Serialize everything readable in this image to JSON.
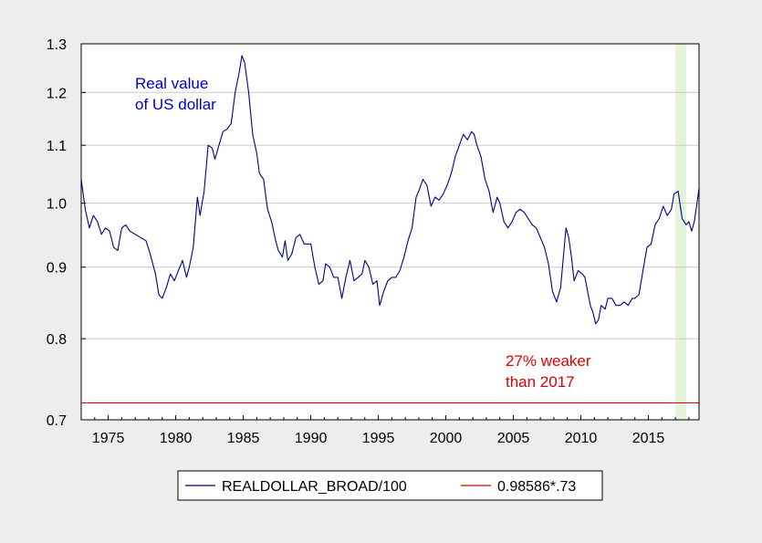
{
  "chart_data": {
    "type": "line",
    "title": "",
    "xlabel": "",
    "ylabel": "",
    "scale_y": "log",
    "xlim": [
      1973.0,
      2018.75
    ],
    "ylim": [
      0.7,
      1.3
    ],
    "grid": "horizontal",
    "y_ticks": [
      "0.7",
      "0.8",
      "0.9",
      "1.0",
      "1.1",
      "1.2",
      "1.3"
    ],
    "x_ticks": [
      "1975",
      "1980",
      "1985",
      "1990",
      "1995",
      "2000",
      "2005",
      "2010",
      "2015"
    ],
    "shaded_region": {
      "start": 2017.0,
      "end": 2017.8,
      "color": "#e4f4da"
    },
    "annotations": [
      {
        "id": "annot-real-value",
        "lines": [
          "Real value",
          "of US dollar"
        ],
        "color": "#0000cc"
      },
      {
        "id": "annot-weaker",
        "lines": [
          "27% weaker",
          "than 2017"
        ],
        "color": "#e00000"
      }
    ],
    "legend": {
      "placement": "bottom-center"
    },
    "series": [
      {
        "name": "REALDOLLAR_BROAD/100",
        "color": "#00008b",
        "points": [
          [
            1973.0,
            1.04
          ],
          [
            1973.3,
            0.99
          ],
          [
            1973.6,
            0.96
          ],
          [
            1973.9,
            0.98
          ],
          [
            1974.2,
            0.97
          ],
          [
            1974.5,
            0.95
          ],
          [
            1974.8,
            0.96
          ],
          [
            1975.1,
            0.955
          ],
          [
            1975.4,
            0.93
          ],
          [
            1975.7,
            0.925
          ],
          [
            1976.0,
            0.96
          ],
          [
            1976.3,
            0.965
          ],
          [
            1976.6,
            0.955
          ],
          [
            1977.0,
            0.95
          ],
          [
            1977.4,
            0.945
          ],
          [
            1977.8,
            0.94
          ],
          [
            1978.1,
            0.92
          ],
          [
            1978.5,
            0.89
          ],
          [
            1978.75,
            0.86
          ],
          [
            1979.0,
            0.855
          ],
          [
            1979.3,
            0.87
          ],
          [
            1979.6,
            0.89
          ],
          [
            1979.9,
            0.88
          ],
          [
            1980.2,
            0.895
          ],
          [
            1980.5,
            0.91
          ],
          [
            1980.8,
            0.885
          ],
          [
            1981.0,
            0.9
          ],
          [
            1981.3,
            0.93
          ],
          [
            1981.6,
            1.01
          ],
          [
            1981.8,
            0.98
          ],
          [
            1982.1,
            1.02
          ],
          [
            1982.4,
            1.1
          ],
          [
            1982.7,
            1.095
          ],
          [
            1982.9,
            1.075
          ],
          [
            1983.2,
            1.1
          ],
          [
            1983.5,
            1.125
          ],
          [
            1983.8,
            1.13
          ],
          [
            1984.1,
            1.14
          ],
          [
            1984.4,
            1.2
          ],
          [
            1984.7,
            1.24
          ],
          [
            1984.9,
            1.275
          ],
          [
            1985.1,
            1.26
          ],
          [
            1985.4,
            1.2
          ],
          [
            1985.7,
            1.12
          ],
          [
            1986.0,
            1.085
          ],
          [
            1986.2,
            1.05
          ],
          [
            1986.5,
            1.04
          ],
          [
            1986.8,
            0.99
          ],
          [
            1987.1,
            0.97
          ],
          [
            1987.4,
            0.94
          ],
          [
            1987.6,
            0.925
          ],
          [
            1987.9,
            0.915
          ],
          [
            1988.1,
            0.94
          ],
          [
            1988.3,
            0.91
          ],
          [
            1988.6,
            0.92
          ],
          [
            1988.9,
            0.945
          ],
          [
            1989.2,
            0.95
          ],
          [
            1989.5,
            0.935
          ],
          [
            1989.8,
            0.935
          ],
          [
            1990.0,
            0.935
          ],
          [
            1990.3,
            0.9
          ],
          [
            1990.6,
            0.875
          ],
          [
            1990.9,
            0.88
          ],
          [
            1991.1,
            0.905
          ],
          [
            1991.4,
            0.9
          ],
          [
            1991.7,
            0.885
          ],
          [
            1992.0,
            0.885
          ],
          [
            1992.3,
            0.855
          ],
          [
            1992.6,
            0.885
          ],
          [
            1992.9,
            0.91
          ],
          [
            1993.2,
            0.88
          ],
          [
            1993.5,
            0.885
          ],
          [
            1993.8,
            0.89
          ],
          [
            1994.0,
            0.91
          ],
          [
            1994.3,
            0.9
          ],
          [
            1994.6,
            0.875
          ],
          [
            1994.9,
            0.88
          ],
          [
            1995.1,
            0.845
          ],
          [
            1995.4,
            0.865
          ],
          [
            1995.7,
            0.88
          ],
          [
            1996.0,
            0.885
          ],
          [
            1996.3,
            0.885
          ],
          [
            1996.6,
            0.895
          ],
          [
            1996.9,
            0.915
          ],
          [
            1997.2,
            0.94
          ],
          [
            1997.5,
            0.96
          ],
          [
            1997.8,
            1.01
          ],
          [
            1998.0,
            1.02
          ],
          [
            1998.3,
            1.04
          ],
          [
            1998.6,
            1.03
          ],
          [
            1998.9,
            0.995
          ],
          [
            1999.2,
            1.01
          ],
          [
            1999.5,
            1.005
          ],
          [
            1999.8,
            1.015
          ],
          [
            2000.1,
            1.03
          ],
          [
            2000.4,
            1.05
          ],
          [
            2000.7,
            1.08
          ],
          [
            2001.0,
            1.1
          ],
          [
            2001.3,
            1.12
          ],
          [
            2001.6,
            1.11
          ],
          [
            2001.9,
            1.125
          ],
          [
            2002.1,
            1.12
          ],
          [
            2002.3,
            1.1
          ],
          [
            2002.6,
            1.08
          ],
          [
            2002.9,
            1.04
          ],
          [
            2003.2,
            1.02
          ],
          [
            2003.5,
            0.985
          ],
          [
            2003.8,
            1.01
          ],
          [
            2004.0,
            1.0
          ],
          [
            2004.3,
            0.97
          ],
          [
            2004.6,
            0.96
          ],
          [
            2004.9,
            0.97
          ],
          [
            2005.2,
            0.985
          ],
          [
            2005.5,
            0.99
          ],
          [
            2005.8,
            0.985
          ],
          [
            2006.1,
            0.975
          ],
          [
            2006.4,
            0.965
          ],
          [
            2006.7,
            0.96
          ],
          [
            2007.0,
            0.945
          ],
          [
            2007.3,
            0.93
          ],
          [
            2007.6,
            0.905
          ],
          [
            2007.9,
            0.865
          ],
          [
            2008.2,
            0.85
          ],
          [
            2008.5,
            0.87
          ],
          [
            2008.75,
            0.925
          ],
          [
            2008.9,
            0.96
          ],
          [
            2009.1,
            0.945
          ],
          [
            2009.3,
            0.915
          ],
          [
            2009.5,
            0.88
          ],
          [
            2009.8,
            0.895
          ],
          [
            2010.1,
            0.89
          ],
          [
            2010.3,
            0.885
          ],
          [
            2010.5,
            0.865
          ],
          [
            2010.7,
            0.845
          ],
          [
            2010.9,
            0.835
          ],
          [
            2011.1,
            0.82
          ],
          [
            2011.3,
            0.825
          ],
          [
            2011.5,
            0.845
          ],
          [
            2011.8,
            0.84
          ],
          [
            2012.0,
            0.855
          ],
          [
            2012.3,
            0.855
          ],
          [
            2012.6,
            0.845
          ],
          [
            2012.9,
            0.845
          ],
          [
            2013.2,
            0.85
          ],
          [
            2013.5,
            0.845
          ],
          [
            2013.8,
            0.855
          ],
          [
            2014.0,
            0.855
          ],
          [
            2014.3,
            0.86
          ],
          [
            2014.6,
            0.895
          ],
          [
            2014.9,
            0.93
          ],
          [
            2015.2,
            0.935
          ],
          [
            2015.5,
            0.965
          ],
          [
            2015.8,
            0.975
          ],
          [
            2016.1,
            0.995
          ],
          [
            2016.4,
            0.98
          ],
          [
            2016.7,
            0.99
          ],
          [
            2016.9,
            1.015
          ],
          [
            2017.2,
            1.02
          ],
          [
            2017.5,
            0.975
          ],
          [
            2017.8,
            0.965
          ],
          [
            2018.0,
            0.97
          ],
          [
            2018.2,
            0.955
          ],
          [
            2018.4,
            0.97
          ],
          [
            2018.6,
            1.0
          ],
          [
            2018.75,
            1.025
          ]
        ]
      },
      {
        "name": "0.98586*.73",
        "color": "#e00000",
        "points": [
          [
            1973.0,
            0.7197
          ],
          [
            2018.75,
            0.7197
          ]
        ]
      }
    ]
  }
}
